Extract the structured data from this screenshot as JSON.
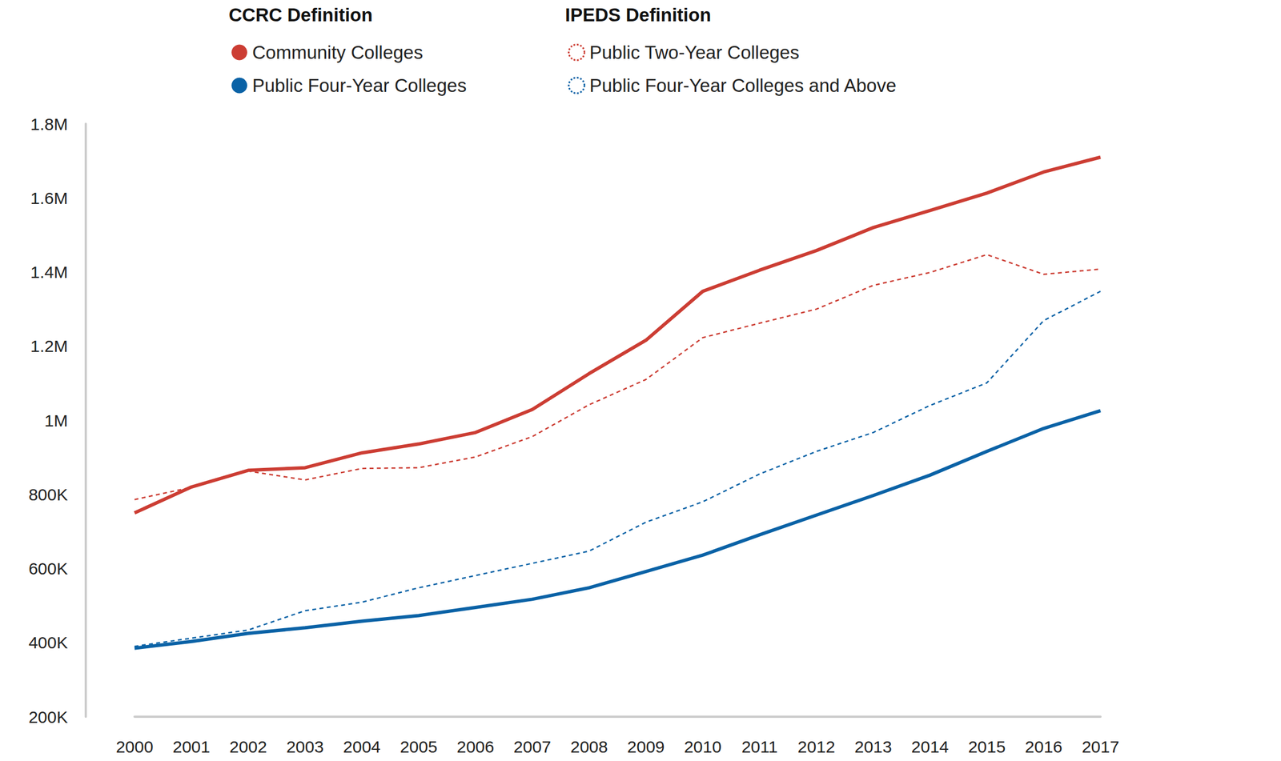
{
  "chart_data": {
    "type": "line",
    "categories": [
      "2000",
      "2001",
      "2002",
      "2003",
      "2004",
      "2005",
      "2006",
      "2007",
      "2008",
      "2009",
      "2010",
      "2011",
      "2012",
      "2013",
      "2014",
      "2015",
      "2016",
      "2017"
    ],
    "series": [
      {
        "name": "Community Colleges",
        "group": "CCRC Definition",
        "color": "#cc3d33",
        "line_style": "solid",
        "values": [
          750000,
          820000,
          865000,
          872000,
          912000,
          936000,
          967000,
          1029000,
          1126000,
          1216000,
          1348000,
          1405000,
          1458000,
          1520000,
          1566000,
          1613000,
          1670000,
          1710000
        ]
      },
      {
        "name": "Public Four-Year Colleges",
        "group": "CCRC Definition",
        "color": "#0a62a6",
        "line_style": "solid",
        "values": [
          385000,
          403000,
          425000,
          440000,
          458000,
          473000,
          495000,
          517000,
          548000,
          592000,
          636000,
          691000,
          744000,
          797000,
          852000,
          916000,
          978000,
          1026000
        ]
      },
      {
        "name": "Public Two-Year Colleges",
        "group": "IPEDS Definition",
        "color": "#cc3d33",
        "line_style": "dashed",
        "values": [
          786000,
          819000,
          863000,
          839000,
          870000,
          872000,
          901000,
          956000,
          1042000,
          1110000,
          1223000,
          1262000,
          1300000,
          1364000,
          1399000,
          1447000,
          1394000,
          1408000
        ]
      },
      {
        "name": "Public Four-Year Colleges and Above",
        "group": "IPEDS Definition",
        "color": "#0a62a6",
        "line_style": "dashed",
        "values": [
          390000,
          412000,
          434000,
          486000,
          509000,
          548000,
          581000,
          614000,
          647000,
          725000,
          780000,
          855000,
          916000,
          967000,
          1040000,
          1101000,
          1269000,
          1348000
        ]
      }
    ],
    "ylim": [
      200000,
      1800000
    ],
    "yticks": [
      {
        "value": 200000,
        "label": "200K"
      },
      {
        "value": 400000,
        "label": "400K"
      },
      {
        "value": 600000,
        "label": "600K"
      },
      {
        "value": 800000,
        "label": "800K"
      },
      {
        "value": 1000000,
        "label": "1M"
      },
      {
        "value": 1200000,
        "label": "1.2M"
      },
      {
        "value": 1400000,
        "label": "1.4M"
      },
      {
        "value": 1600000,
        "label": "1.6M"
      },
      {
        "value": 1800000,
        "label": "1.8M"
      }
    ],
    "grid": false
  }
}
